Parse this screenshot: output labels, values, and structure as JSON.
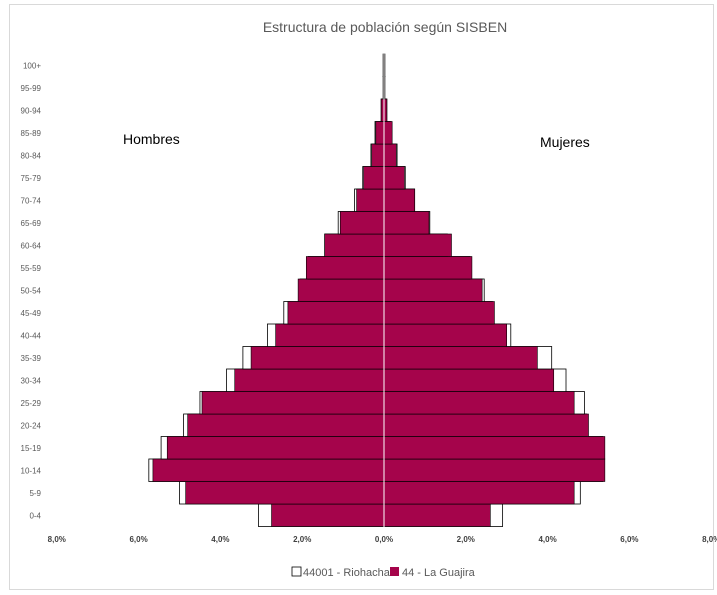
{
  "chart_data": {
    "type": "bar",
    "orientation": "horizontal",
    "title": "Estructura de población según SISBEN",
    "annotations": {
      "left": "Hombres",
      "right": "Mujeres"
    },
    "categories": [
      "0-4",
      "5-9",
      "10-14",
      "15-19",
      "20-24",
      "25-29",
      "30-34",
      "35-39",
      "40-44",
      "45-49",
      "50-54",
      "55-59",
      "60-64",
      "65-69",
      "70-74",
      "75-79",
      "80-84",
      "85-89",
      "90-94",
      "95-99",
      "100+"
    ],
    "xlim": [
      -8.0,
      8.0
    ],
    "x_ticks": [
      "8,0%",
      "6,0%",
      "4,0%",
      "2,0%",
      "0,0%",
      "2,0%",
      "4,0%",
      "6,0%",
      "8,0%"
    ],
    "series": [
      {
        "name": "44001 - Riohacha",
        "color": "#ffffff",
        "outline": "#000000",
        "men": [
          3.07,
          5.0,
          5.75,
          5.45,
          4.9,
          4.5,
          3.85,
          3.45,
          2.85,
          2.45,
          2.05,
          1.85,
          1.45,
          1.12,
          0.72,
          0.52,
          0.32,
          0.22,
          0.07,
          0.02,
          0.02
        ],
        "women": [
          2.9,
          4.8,
          5.35,
          5.35,
          4.95,
          4.9,
          4.45,
          4.1,
          3.1,
          2.65,
          2.45,
          2.1,
          1.55,
          1.12,
          0.75,
          0.52,
          0.32,
          0.17,
          0.07,
          0.02,
          0.02
        ]
      },
      {
        "name": "44 - La Guajira",
        "color": "#a5044b",
        "outline": "#000000",
        "men": [
          2.75,
          4.85,
          5.65,
          5.3,
          4.8,
          4.45,
          3.65,
          3.25,
          2.65,
          2.35,
          2.1,
          1.9,
          1.45,
          1.07,
          0.67,
          0.5,
          0.3,
          0.2,
          0.07,
          0.02,
          0.02
        ],
        "women": [
          2.6,
          4.65,
          5.4,
          5.4,
          5.0,
          4.65,
          4.15,
          3.75,
          3.0,
          2.7,
          2.4,
          2.15,
          1.65,
          1.1,
          0.75,
          0.5,
          0.3,
          0.2,
          0.07,
          0.02,
          0.02
        ]
      }
    ],
    "legend": {
      "position": "bottom",
      "entries": [
        "44001 - Riohacha",
        "44 - La Guajira"
      ]
    },
    "grid": false
  }
}
